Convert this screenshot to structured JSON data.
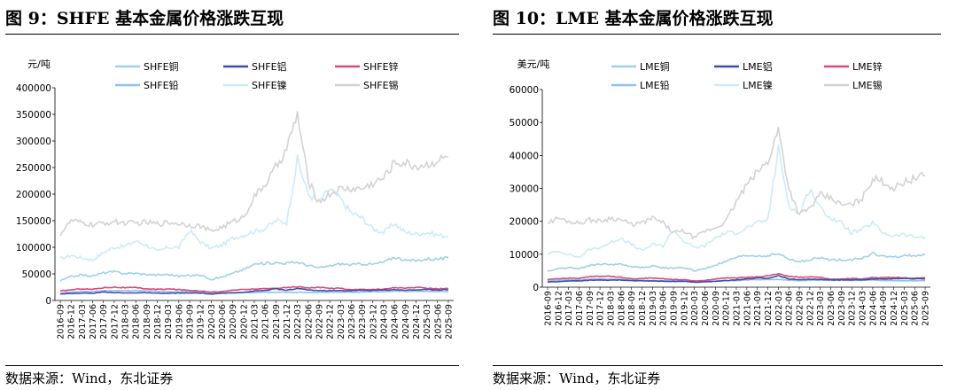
{
  "colors": {
    "copper": "#9FD0EE",
    "aluminum": "#3F4FA8",
    "zinc": "#D94A78",
    "lead": "#8EC3EA",
    "nickel": "#CDEBF6",
    "tin": "#D3D3D3"
  },
  "chart_data": [
    {
      "type": "line",
      "figure_title": "图  9：SHFE 基本金属价格涨跌互现",
      "unit_label": "元/吨",
      "ylim": [
        0,
        400000
      ],
      "yticks": [
        "400000",
        "350000",
        "300000",
        "250000",
        "200000",
        "150000",
        "100000",
        "50000",
        "0"
      ],
      "x": [
        "2016-09",
        "2016-12",
        "2017-03",
        "2017-06",
        "2017-09",
        "2017-12",
        "2018-03",
        "2018-06",
        "2018-09",
        "2018-12",
        "2019-03",
        "2019-06",
        "2019-09",
        "2019-12",
        "2020-03",
        "2020-06",
        "2020-09",
        "2020-12",
        "2021-03",
        "2021-06",
        "2021-09",
        "2021-12",
        "2022-03",
        "2022-06",
        "2022-09",
        "2022-12",
        "2023-03",
        "2023-06",
        "2023-09",
        "2023-12",
        "2024-03",
        "2024-06",
        "2024-09",
        "2024-12",
        "2025-03",
        "2025-06",
        "2025-09"
      ],
      "series": [
        {
          "key": "copper",
          "name": "SHFE铜",
          "values": [
            37000,
            45000,
            48000,
            46000,
            52000,
            54000,
            51000,
            51000,
            49000,
            48000,
            49000,
            46000,
            47000,
            48000,
            40000,
            44000,
            51000,
            58000,
            68000,
            70000,
            71000,
            70000,
            72000,
            66000,
            61000,
            65000,
            69000,
            67000,
            69000,
            68000,
            72000,
            82000,
            75000,
            75000,
            78000,
            78000,
            80000
          ]
        },
        {
          "key": "aluminum",
          "name": "SHFE铝",
          "values": [
            12500,
            13000,
            14000,
            13500,
            16000,
            15000,
            14000,
            14500,
            14500,
            13500,
            13500,
            14000,
            14000,
            14000,
            12000,
            13500,
            14500,
            15500,
            17500,
            19000,
            22000,
            19000,
            22500,
            20000,
            18500,
            18500,
            18500,
            18500,
            19000,
            19000,
            19500,
            20500,
            19500,
            20000,
            20500,
            20000,
            20500
          ]
        },
        {
          "key": "zinc",
          "name": "SHFE锌",
          "values": [
            18000,
            20000,
            22000,
            21000,
            24000,
            25000,
            24000,
            24000,
            22000,
            21000,
            21500,
            20500,
            19000,
            18000,
            16000,
            16500,
            19500,
            20500,
            21500,
            22000,
            23000,
            24000,
            26000,
            24000,
            24500,
            23000,
            23000,
            20000,
            21000,
            21000,
            21000,
            24500,
            23000,
            24500,
            23000,
            22000,
            22500
          ]
        },
        {
          "key": "lead",
          "name": "SHFE铅",
          "values": [
            14000,
            16000,
            17000,
            16500,
            18500,
            18500,
            18000,
            18500,
            18000,
            17500,
            16500,
            16500,
            17000,
            16500,
            14500,
            14500,
            15000,
            15000,
            15000,
            15500,
            15500,
            15500,
            15500,
            15000,
            15000,
            15500,
            15500,
            15500,
            15500,
            16500,
            16500,
            17500,
            17000,
            17000,
            17000,
            17000,
            16800
          ]
        },
        {
          "key": "nickel",
          "name": "SHFE镍",
          "values": [
            78000,
            85000,
            80000,
            76000,
            90000,
            100000,
            102000,
            112000,
            104000,
            92000,
            100000,
            100000,
            132000,
            110000,
            98000,
            104000,
            117000,
            123000,
            130000,
            135000,
            150000,
            147000,
            265000,
            200000,
            185000,
            210000,
            190000,
            165000,
            155000,
            135000,
            128000,
            145000,
            128000,
            125000,
            128000,
            123000,
            121000
          ]
        },
        {
          "key": "tin",
          "name": "SHFE锡",
          "values": [
            125000,
            150000,
            146000,
            142000,
            145000,
            148000,
            146000,
            145000,
            147000,
            144000,
            147000,
            145000,
            142000,
            140000,
            130000,
            138000,
            148000,
            157000,
            195000,
            218000,
            250000,
            285000,
            350000,
            225000,
            185000,
            200000,
            210000,
            210000,
            210000,
            220000,
            230000,
            260000,
            258000,
            252000,
            255000,
            263000,
            270000
          ]
        }
      ]
    },
    {
      "type": "line",
      "figure_title": "图  10：LME 基本金属价格涨跌互现",
      "unit_label": "美元/吨",
      "ylim": [
        0,
        60000
      ],
      "yticks": [
        "60000",
        "50000",
        "40000",
        "30000",
        "20000",
        "10000",
        "0"
      ],
      "x": [
        "2016-09",
        "2016-12",
        "2017-03",
        "2017-06",
        "2017-09",
        "2017-12",
        "2018-03",
        "2018-06",
        "2018-09",
        "2018-12",
        "2019-03",
        "2019-06",
        "2019-09",
        "2019-12",
        "2020-03",
        "2020-06",
        "2020-09",
        "2020-12",
        "2021-03",
        "2021-06",
        "2021-09",
        "2021-12",
        "2022-03",
        "2022-06",
        "2022-09",
        "2022-12",
        "2023-03",
        "2023-06",
        "2023-09",
        "2023-12",
        "2024-03",
        "2024-06",
        "2024-09",
        "2024-12",
        "2025-03",
        "2025-06",
        "2025-09"
      ],
      "series": [
        {
          "key": "copper",
          "name": "LME铜",
          "values": [
            4800,
            5700,
            5900,
            5700,
            6600,
            7000,
            6900,
            7000,
            6200,
            6000,
            6400,
            5900,
            5700,
            6000,
            5000,
            5600,
            6700,
            7800,
            9000,
            9600,
            9500,
            9500,
            10200,
            8500,
            7700,
            8300,
            8900,
            8300,
            8300,
            8400,
            8800,
            10200,
            9400,
            9000,
            9700,
            9600,
            9800
          ]
        },
        {
          "key": "aluminum",
          "name": "LME铝",
          "values": [
            1600,
            1700,
            1900,
            1900,
            2100,
            2200,
            2100,
            2200,
            2000,
            1900,
            1900,
            1800,
            1750,
            1800,
            1500,
            1600,
            1800,
            2000,
            2200,
            2450,
            2800,
            2700,
            3500,
            2500,
            2300,
            2400,
            2350,
            2200,
            2200,
            2250,
            2250,
            2500,
            2450,
            2550,
            2600,
            2550,
            2600
          ]
        },
        {
          "key": "zinc",
          "name": "LME锌",
          "values": [
            2300,
            2600,
            2800,
            2600,
            3200,
            3300,
            3300,
            3000,
            2500,
            2600,
            2800,
            2600,
            2300,
            2300,
            1900,
            2000,
            2500,
            2800,
            2800,
            3000,
            3100,
            3500,
            4000,
            3300,
            3000,
            3100,
            3000,
            2400,
            2500,
            2600,
            2500,
            2900,
            2900,
            3000,
            2800,
            2700,
            2850
          ]
        },
        {
          "key": "lead",
          "name": "LME铅",
          "values": [
            1900,
            2100,
            2250,
            2200,
            2450,
            2500,
            2400,
            2400,
            2050,
            1950,
            2050,
            1900,
            2000,
            1900,
            1700,
            1750,
            1850,
            1950,
            2000,
            2200,
            2300,
            2300,
            2400,
            2100,
            2000,
            2150,
            2100,
            2100,
            2150,
            2050,
            2050,
            2200,
            2000,
            1950,
            2000,
            1980,
            1990
          ]
        },
        {
          "key": "nickel",
          "name": "LME镍",
          "values": [
            10000,
            11000,
            10000,
            9000,
            11500,
            12000,
            13500,
            15000,
            13000,
            11000,
            13000,
            12500,
            17500,
            14000,
            12000,
            12500,
            15000,
            16500,
            16500,
            18000,
            19500,
            20500,
            42000,
            25000,
            22000,
            30000,
            24000,
            21000,
            19500,
            16500,
            17500,
            19500,
            16500,
            15500,
            16000,
            15200,
            15200
          ]
        },
        {
          "key": "tin",
          "name": "LME锡",
          "values": [
            19500,
            21000,
            20000,
            19500,
            20500,
            20000,
            21000,
            20500,
            19000,
            19500,
            21000,
            19500,
            16500,
            17000,
            15000,
            17000,
            18000,
            20000,
            26000,
            31000,
            35000,
            38000,
            48000,
            30000,
            22000,
            24000,
            28000,
            27000,
            25000,
            25000,
            27000,
            33000,
            32000,
            30000,
            32000,
            33000,
            34000
          ]
        }
      ]
    }
  ],
  "left": {
    "title": "图  9：SHFE 基本金属价格涨跌互现",
    "unit": "元/吨",
    "source": "数据来源：Wind，东北证券",
    "legend": [
      "SHFE铜",
      "SHFE铝",
      "SHFE锌",
      "SHFE铅",
      "SHFE镍",
      "SHFE锡"
    ]
  },
  "right": {
    "title": "图  10：LME 基本金属价格涨跌互现",
    "unit": "美元/吨",
    "source": "数据来源：Wind，东北证券",
    "legend": [
      "LME铜",
      "LME铝",
      "LME锌",
      "LME铅",
      "LME镍",
      "LME锡"
    ]
  }
}
